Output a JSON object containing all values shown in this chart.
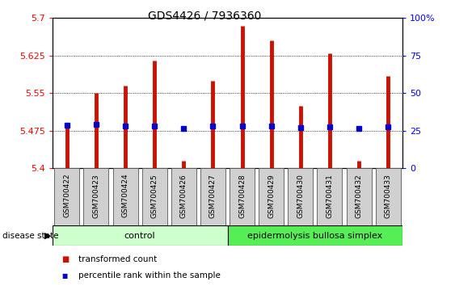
{
  "title": "GDS4426 / 7936360",
  "samples": [
    "GSM700422",
    "GSM700423",
    "GSM700424",
    "GSM700425",
    "GSM700426",
    "GSM700427",
    "GSM700428",
    "GSM700429",
    "GSM700430",
    "GSM700431",
    "GSM700432",
    "GSM700433"
  ],
  "bar_tops": [
    5.49,
    5.55,
    5.565,
    5.615,
    5.415,
    5.575,
    5.685,
    5.655,
    5.525,
    5.63,
    5.415,
    5.585
  ],
  "bar_bottoms": [
    5.4,
    5.4,
    5.4,
    5.4,
    5.4,
    5.4,
    5.4,
    5.4,
    5.4,
    5.4,
    5.4,
    5.4
  ],
  "blue_dots": [
    5.486,
    5.487,
    5.484,
    5.484,
    5.48,
    5.484,
    5.484,
    5.484,
    5.481,
    5.482,
    5.48,
    5.483
  ],
  "ylim": [
    5.4,
    5.7
  ],
  "yticks_left": [
    5.4,
    5.475,
    5.55,
    5.625,
    5.7
  ],
  "yticks_right": [
    0,
    25,
    50,
    75,
    100
  ],
  "bar_color": "#cc1100",
  "dot_color": "#0000cc",
  "control_color": "#ccffcc",
  "disease_color": "#55ee55",
  "control_label": "control",
  "disease_label": "epidermolysis bullosa simplex",
  "control_count": 6,
  "disease_count": 6,
  "legend_bar_label": "transformed count",
  "legend_dot_label": "percentile rank within the sample",
  "disease_state_label": "disease state",
  "bg_color": "#ffffff"
}
